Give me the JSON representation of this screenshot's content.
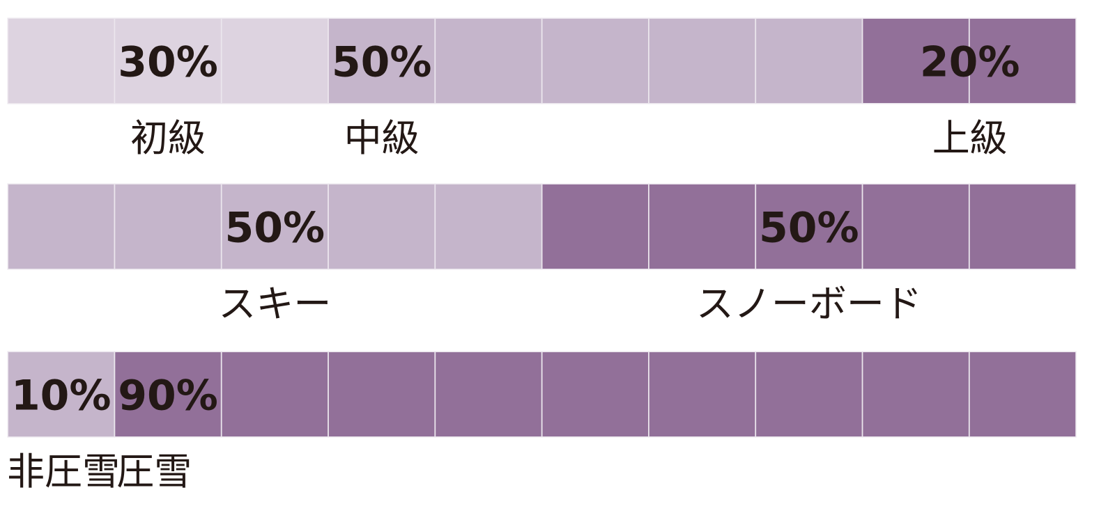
{
  "chart_data": [
    {
      "type": "waffle",
      "unit_percent": 10,
      "segments": [
        {
          "label": "初級",
          "value": 30,
          "value_label": "30%",
          "color": "#ddd3e0"
        },
        {
          "label": "中級",
          "value": 50,
          "value_label": "50%",
          "color": "#c5b5cb"
        },
        {
          "label": "上級",
          "value": 20,
          "value_label": "20%",
          "color": "#927099"
        }
      ]
    },
    {
      "type": "waffle",
      "unit_percent": 10,
      "segments": [
        {
          "label": "スキー",
          "value": 50,
          "value_label": "50%",
          "color": "#c5b5cb"
        },
        {
          "label": "スノーボード",
          "value": 50,
          "value_label": "50%",
          "color": "#927099"
        }
      ]
    },
    {
      "type": "waffle",
      "unit_percent": 10,
      "segments": [
        {
          "label": "非圧雪",
          "value": 10,
          "value_label": "10%",
          "color": "#c5b5cb"
        },
        {
          "label": "圧雪",
          "value": 90,
          "value_label": "90%",
          "color": "#927099"
        }
      ]
    }
  ]
}
